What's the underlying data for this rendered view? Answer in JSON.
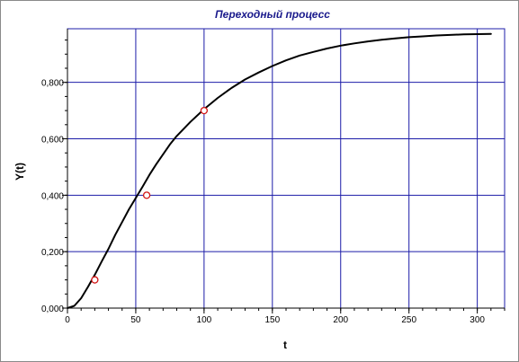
{
  "colors": {
    "title": "#1a1a8c",
    "grid": "#1c1ca8",
    "curve": "#000000",
    "marker": "#d21414",
    "axis": "#000000"
  },
  "chart_data": {
    "type": "line",
    "title": "Переходный процесс",
    "xlabel": "t",
    "ylabel": "Y(t)",
    "xlim": [
      0,
      320
    ],
    "ylim": [
      0,
      0.99
    ],
    "x_ticks": [
      0,
      50,
      100,
      150,
      200,
      250,
      300
    ],
    "x_tick_labels": [
      "0",
      "50",
      "100",
      "150",
      "200",
      "250",
      "300"
    ],
    "y_ticks": [
      0,
      0.2,
      0.4,
      0.6,
      0.8
    ],
    "y_tick_labels": [
      "0,000",
      "0,200",
      "0,400",
      "0,600",
      "0,800"
    ],
    "grid": true,
    "series": [
      {
        "x": [
          0,
          5,
          10,
          15,
          20,
          25,
          30,
          35,
          40,
          45,
          50,
          55,
          60,
          65,
          70,
          75,
          80,
          90,
          100,
          110,
          120,
          130,
          140,
          150,
          160,
          170,
          180,
          190,
          200,
          210,
          220,
          230,
          240,
          250,
          260,
          270,
          280,
          290,
          300,
          310
        ],
        "y": [
          0.0,
          0.008,
          0.035,
          0.075,
          0.118,
          0.165,
          0.21,
          0.26,
          0.305,
          0.35,
          0.39,
          0.43,
          0.472,
          0.51,
          0.545,
          0.58,
          0.61,
          0.66,
          0.705,
          0.745,
          0.78,
          0.81,
          0.835,
          0.858,
          0.878,
          0.895,
          0.908,
          0.92,
          0.93,
          0.938,
          0.945,
          0.951,
          0.956,
          0.96,
          0.963,
          0.966,
          0.968,
          0.97,
          0.971,
          0.972
        ]
      }
    ],
    "markers": [
      {
        "x": 20,
        "y": 0.1
      },
      {
        "x": 58,
        "y": 0.4
      },
      {
        "x": 100,
        "y": 0.7
      }
    ]
  }
}
